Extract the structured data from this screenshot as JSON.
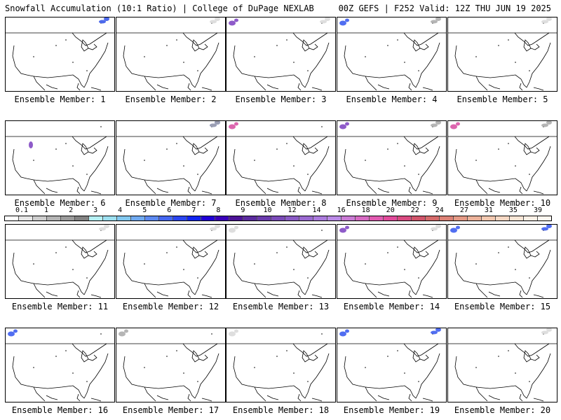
{
  "header": {
    "title_left": "Snowfall Accumulation (10:1 Ratio) | College of DuPage NEXLAB",
    "title_right": "00Z GEFS | F252 Valid: 12Z THU JUN 19 2025"
  },
  "panels": [
    {
      "label": "Ensemble Member: 1",
      "snow": [
        {
          "region": "ne-canada",
          "level": "gray-light"
        },
        {
          "region": "ne-canada",
          "level": "blue"
        }
      ]
    },
    {
      "label": "Ensemble Member: 2",
      "snow": [
        {
          "region": "ne-canada",
          "level": "gray-light"
        }
      ]
    },
    {
      "label": "Ensemble Member: 3",
      "snow": [
        {
          "region": "nw-canada",
          "level": "purple"
        },
        {
          "region": "ne-canada",
          "level": "gray-light"
        }
      ]
    },
    {
      "label": "Ensemble Member: 4",
      "snow": [
        {
          "region": "nw-canada",
          "level": "blue"
        },
        {
          "region": "ne-canada",
          "level": "gray"
        }
      ]
    },
    {
      "label": "Ensemble Member: 5",
      "snow": [
        {
          "region": "ne-canada",
          "level": "gray-light"
        }
      ]
    },
    {
      "label": "Ensemble Member: 6",
      "snow": [
        {
          "region": "rockies",
          "level": "purple"
        }
      ]
    },
    {
      "label": "Ensemble Member: 7",
      "snow": [
        {
          "region": "ne-canada",
          "level": "blue"
        },
        {
          "region": "ne-canada",
          "level": "gray"
        }
      ]
    },
    {
      "label": "Ensemble Member: 8",
      "snow": [
        {
          "region": "nw-canada",
          "level": "pink"
        }
      ]
    },
    {
      "label": "Ensemble Member: 9",
      "snow": [
        {
          "region": "nw-canada",
          "level": "purple"
        },
        {
          "region": "ne-canada",
          "level": "gray"
        }
      ]
    },
    {
      "label": "Ensemble Member: 10",
      "snow": [
        {
          "region": "nw-canada",
          "level": "pink"
        },
        {
          "region": "ne-canada",
          "level": "gray"
        }
      ]
    },
    {
      "label": "Ensemble Member: 11",
      "snow": [
        {
          "region": "ne-canada",
          "level": "gray-light"
        }
      ]
    },
    {
      "label": "Ensemble Member: 12",
      "snow": [
        {
          "region": "ne-canada",
          "level": "gray-light"
        }
      ]
    },
    {
      "label": "Ensemble Member: 13",
      "snow": [
        {
          "region": "nw-canada",
          "level": "gray-light"
        }
      ]
    },
    {
      "label": "Ensemble Member: 14",
      "snow": [
        {
          "region": "nw-canada",
          "level": "purple"
        },
        {
          "region": "ne-canada",
          "level": "gray-light"
        }
      ]
    },
    {
      "label": "Ensemble Member: 15",
      "snow": [
        {
          "region": "nw-canada",
          "level": "blue"
        },
        {
          "region": "ne-canada",
          "level": "blue"
        }
      ]
    },
    {
      "label": "Ensemble Member: 16",
      "snow": [
        {
          "region": "nw-canada",
          "level": "blue"
        }
      ]
    },
    {
      "label": "Ensemble Member: 17",
      "snow": [
        {
          "region": "nw-canada",
          "level": "gray"
        }
      ]
    },
    {
      "label": "Ensemble Member: 18",
      "snow": [
        {
          "region": "nw-canada",
          "level": "gray-light"
        }
      ]
    },
    {
      "label": "Ensemble Member: 19",
      "snow": [
        {
          "region": "nw-canada",
          "level": "blue"
        },
        {
          "region": "ne-canada",
          "level": "blue"
        }
      ]
    },
    {
      "label": "Ensemble Member: 20",
      "snow": [
        {
          "region": "ne-canada",
          "level": "gray-light"
        }
      ]
    }
  ],
  "colorbar": {
    "ticks": [
      "0.1",
      "1",
      "2",
      "3",
      "4",
      "5",
      "6",
      "7",
      "8",
      "9",
      "10",
      "12",
      "14",
      "16",
      "18",
      "20",
      "22",
      "24",
      "27",
      "31",
      "35",
      "39"
    ],
    "bins": [
      "#ffffff",
      "#e6e6e6",
      "#cdcdcd",
      "#b4b4b4",
      "#9b9b9b",
      "#828282",
      "#b5f0f3",
      "#9cdfef",
      "#82c8ef",
      "#6fa9f0",
      "#5c89f0",
      "#4466f0",
      "#2a45f0",
      "#1024f0",
      "#2000d6",
      "#3a00b8",
      "#4c1296",
      "#5a2a9e",
      "#6a3aac",
      "#7a4ab8",
      "#8a5ac4",
      "#9a6ad0",
      "#aa7adc",
      "#ba8ae6",
      "#c97ad4",
      "#d66ac2",
      "#e05ab0",
      "#e04a9a",
      "#d84a80",
      "#d0546a",
      "#d46a6a",
      "#dc8276",
      "#e49a86",
      "#ecb29a",
      "#f2c8b0",
      "#f6d8c4",
      "#f9e6d6",
      "#fbf0e6",
      "#fdf7f0"
    ],
    "snow_levels": {
      "gray-light": "#d8d8d8",
      "gray": "#a8a8a8",
      "blue": "#3355ee",
      "purple": "#7a3ec0",
      "pink": "#d64aa0"
    }
  }
}
